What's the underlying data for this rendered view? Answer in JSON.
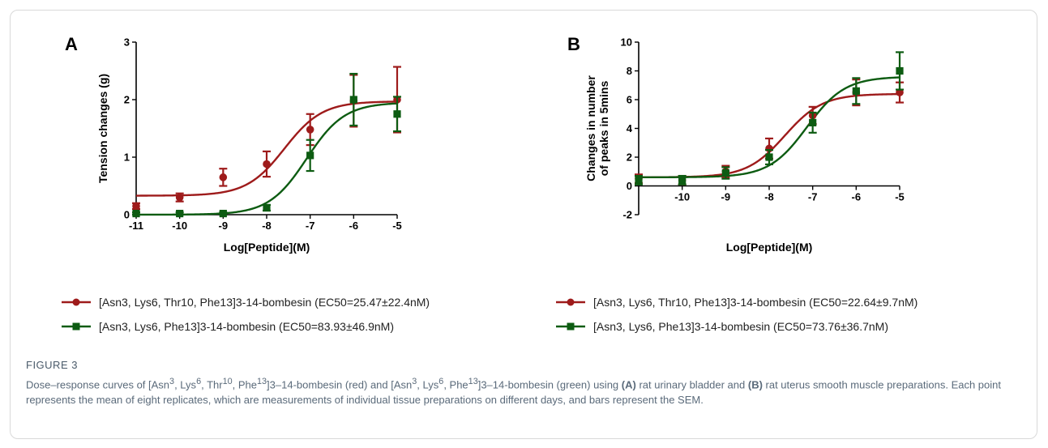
{
  "figure": {
    "label": "FIGURE 3",
    "caption": {
      "part1": "Dose–response curves of [Asn",
      "sup1": "3",
      "part2": ", Lys",
      "sup2": "6",
      "part3": ", Thr",
      "sup3": "10",
      "part4": ", Phe",
      "sup4": "13",
      "part5": "]3–14-bombesin (red) and [Asn",
      "sup5": "3",
      "part6": ", Lys",
      "sup6": "6",
      "part7": ", Phe",
      "sup7": "13",
      "part8": "]3–14-bombesin (green) using ",
      "bold_a": "(A)",
      "part9": " rat urinary bladder and ",
      "bold_b": "(B)",
      "part10": " rat uterus smooth muscle preparations. Each point represents the mean of eight replicates, which are measurements of individual tissue preparations on different days, and bars represent the SEM."
    }
  },
  "colors": {
    "red": "#9e1b1b",
    "green": "#0d5c12"
  },
  "chart_data": [
    {
      "type": "scatter",
      "panel": "A",
      "xlabel": "Log[Peptide](M)",
      "ylabel": "Tension changes (g)",
      "xlim": [
        -11,
        -5
      ],
      "ylim": [
        0,
        3
      ],
      "xticks": [
        -11,
        -10,
        -9,
        -8,
        -7,
        -6,
        -5
      ],
      "yticks": [
        0,
        1,
        2,
        3
      ],
      "legend_position": "below",
      "series": [
        {
          "name": "[Asn3, Lys6, Thr10, Phe13]3-14-bombesin (EC50=25.47±22.4nM)",
          "marker": "circle",
          "color": "#9e1b1b",
          "x": [
            -11,
            -10,
            -9,
            -8,
            -7,
            -6,
            -5
          ],
          "y": [
            0.15,
            0.3,
            0.65,
            0.88,
            1.48,
            1.98,
            2.0
          ],
          "sem": [
            0.05,
            0.07,
            0.15,
            0.22,
            0.27,
            0.45,
            0.57
          ],
          "fit": {
            "bottom": 0.33,
            "top": 1.97,
            "logEC50": -7.59,
            "hill": 1.0
          }
        },
        {
          "name": "[Asn3, Lys6, Phe13]3-14-bombesin (EC50=83.93±46.9nM)",
          "marker": "square",
          "color": "#0d5c12",
          "x": [
            -11,
            -10,
            -9,
            -8,
            -7,
            -6,
            -5
          ],
          "y": [
            0.02,
            0.02,
            0.02,
            0.12,
            1.03,
            2.0,
            1.75
          ],
          "sem": [
            0.02,
            0.02,
            0.02,
            0.05,
            0.27,
            0.45,
            0.3
          ],
          "fit": {
            "bottom": 0.0,
            "top": 1.95,
            "logEC50": -7.08,
            "hill": 1.0
          }
        }
      ]
    },
    {
      "type": "scatter",
      "panel": "B",
      "xlabel": "Log[Peptide](M)",
      "ylabel": [
        "Changes in number",
        "of peaks in 5mins"
      ],
      "xlim": [
        -11,
        -5
      ],
      "ylim": [
        -2,
        10
      ],
      "xticks": [
        -10,
        -9,
        -8,
        -7,
        -6,
        -5
      ],
      "yticks": [
        -2,
        0,
        2,
        4,
        6,
        8,
        10
      ],
      "legend_position": "below",
      "series": [
        {
          "name": "[Asn3, Lys6, Thr10, Phe13]3-14-bombesin (EC50=22.64±9.7nM)",
          "marker": "circle",
          "color": "#9e1b1b",
          "x": [
            -11,
            -10,
            -9,
            -8,
            -7,
            -6,
            -5
          ],
          "y": [
            0.5,
            0.4,
            1.0,
            2.6,
            4.9,
            6.5,
            6.5
          ],
          "sem": [
            0.3,
            0.3,
            0.4,
            0.7,
            0.6,
            0.9,
            0.7
          ],
          "fit": {
            "bottom": 0.6,
            "top": 6.4,
            "logEC50": -7.64,
            "hill": 1.0
          }
        },
        {
          "name": "[Asn3, Lys6, Phe13]3-14-bombesin (EC50=73.76±36.7nM)",
          "marker": "square",
          "color": "#0d5c12",
          "x": [
            -11,
            -10,
            -9,
            -8,
            -7,
            -6,
            -5
          ],
          "y": [
            0.4,
            0.4,
            0.9,
            2.0,
            4.4,
            6.6,
            8.0
          ],
          "sem": [
            0.3,
            0.3,
            0.4,
            0.5,
            0.7,
            0.9,
            1.3
          ],
          "fit": {
            "bottom": 0.6,
            "top": 7.6,
            "logEC50": -7.13,
            "hill": 1.0
          }
        }
      ]
    }
  ]
}
